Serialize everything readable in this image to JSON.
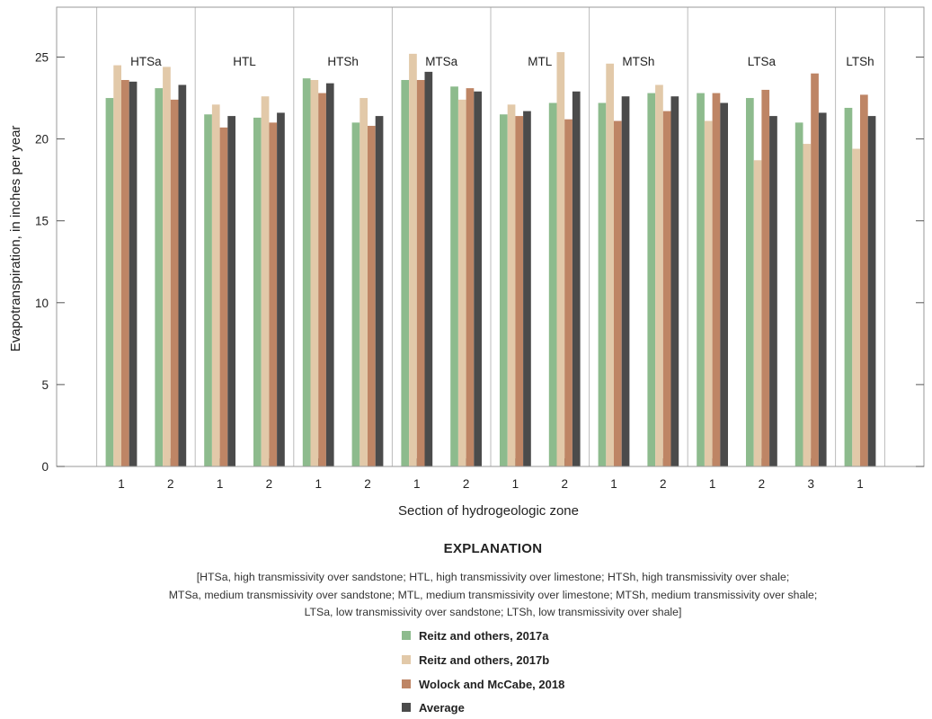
{
  "chart_data": {
    "type": "bar",
    "title": "",
    "xlabel": "Section of hydrogeologic zone",
    "ylabel": "Evapotranspiration, in inches per year",
    "ylim": [
      0,
      27.5
    ],
    "yticks": [
      0,
      5,
      10,
      15,
      20,
      25
    ],
    "grid": false,
    "groups": [
      {
        "label": "HTSa",
        "sections": [
          "1",
          "2"
        ]
      },
      {
        "label": "HTL",
        "sections": [
          "1",
          "2"
        ]
      },
      {
        "label": "HTSh",
        "sections": [
          "1",
          "2"
        ]
      },
      {
        "label": "MTSa",
        "sections": [
          "1",
          "2"
        ]
      },
      {
        "label": "MTL",
        "sections": [
          "1",
          "2"
        ]
      },
      {
        "label": "MTSh",
        "sections": [
          "1",
          "2"
        ]
      },
      {
        "label": "LTSa",
        "sections": [
          "1",
          "2",
          "3"
        ]
      },
      {
        "label": "LTSh",
        "sections": [
          "1"
        ]
      }
    ],
    "categories": [
      "HTSa 1",
      "HTSa 2",
      "HTL 1",
      "HTL 2",
      "HTSh 1",
      "HTSh 2",
      "MTSa 1",
      "MTSa 2",
      "MTL 1",
      "MTL 2",
      "MTSh 1",
      "MTSh 2",
      "LTSa 1",
      "LTSa 2",
      "LTSa 3",
      "LTSh 1"
    ],
    "series": [
      {
        "name": "Reitz and others, 2017a",
        "color": "#8dbb8d",
        "values": [
          22.5,
          23.1,
          21.5,
          21.3,
          23.7,
          21.0,
          23.6,
          23.2,
          21.5,
          22.2,
          22.2,
          22.8,
          22.8,
          22.5,
          21.0,
          21.9
        ]
      },
      {
        "name": "Reitz and others, 2017b",
        "color": "#e2c9a9",
        "values": [
          24.5,
          24.4,
          22.1,
          22.6,
          23.6,
          22.5,
          25.2,
          22.4,
          22.1,
          25.3,
          24.6,
          23.3,
          21.1,
          18.7,
          19.7,
          19.4
        ]
      },
      {
        "name": "Wolock and McCabe, 2018",
        "color": "#be8565",
        "values": [
          23.6,
          22.4,
          20.7,
          21.0,
          22.8,
          20.8,
          23.6,
          23.1,
          21.4,
          21.2,
          21.1,
          21.7,
          22.8,
          23.0,
          24.0,
          22.7
        ]
      },
      {
        "name": "Average",
        "color": "#4b4b4b",
        "values": [
          23.5,
          23.3,
          21.4,
          21.6,
          23.4,
          21.4,
          24.1,
          22.9,
          21.7,
          22.9,
          22.6,
          22.6,
          22.2,
          21.4,
          21.6,
          21.4
        ]
      }
    ],
    "legend_placement": "bottom"
  },
  "explanation": {
    "title": "EXPLANATION",
    "note_lines": [
      "[HTSa, high transmissivity over sandstone; HTL, high transmissivity over limestone; HTSh, high transmissivity over shale;",
      "MTSa, medium transmissivity over sandstone; MTL, medium transmissivity over limestone; MTSh, medium transmissivity over shale;",
      "LTSa, low transmissivity over sandstone; LTSh, low transmissivity over shale]"
    ]
  }
}
